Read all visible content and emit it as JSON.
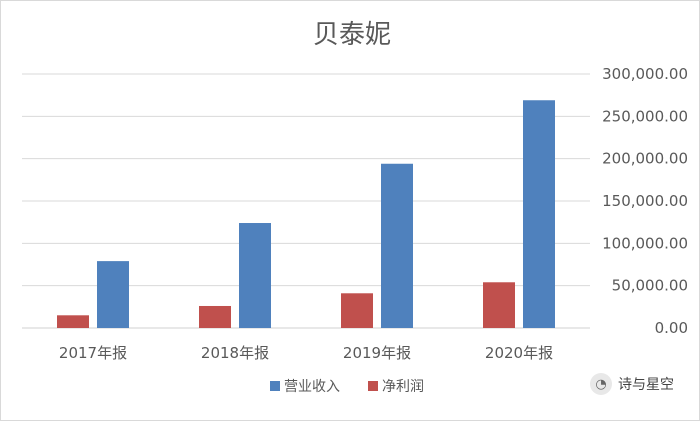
{
  "chart_data": {
    "type": "bar",
    "title": "贝泰妮",
    "categories": [
      "2017年报",
      "2018年报",
      "2019年报",
      "2020年报"
    ],
    "series": [
      {
        "name": "营业收入",
        "color": "#4f81bd",
        "values": [
          79000,
          124000,
          194000,
          269000
        ]
      },
      {
        "name": "净利润",
        "color": "#c0504d",
        "values": [
          15000,
          26000,
          41000,
          54000
        ]
      }
    ],
    "ylim": [
      0,
      300000
    ],
    "yticks": [
      0,
      50000,
      100000,
      150000,
      200000,
      250000,
      300000
    ],
    "ytick_labels": [
      "0.00",
      "50,000.00",
      "100,000.00",
      "150,000.00",
      "200,000.00",
      "250,000.00",
      "300,000.00"
    ],
    "axis_side": "right",
    "grid": true,
    "legend": "bottom"
  },
  "watermark": {
    "text": "诗与星空",
    "icon": "wechat-icon"
  }
}
